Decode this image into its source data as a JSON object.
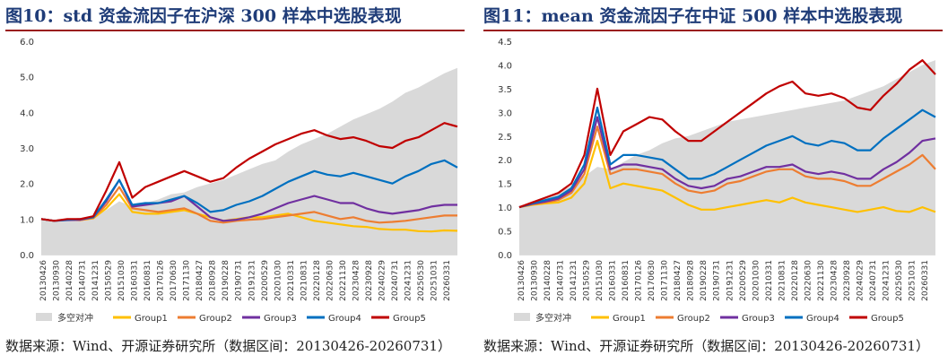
{
  "charts": [
    {
      "title": "图10：std 资金流因子在沪深 300 样本中选股表现",
      "source": "数据来源：Wind、开源证券研究所（数据区间：20130426-20260731）"
    },
    {
      "title": "图11：mean 资金流因子在中证 500 样本中选股表现",
      "source": "数据来源：Wind、开源证券研究所（数据区间：20130426-20260731）"
    }
  ],
  "chart_data": [
    {
      "type": "line",
      "title": "图10：std 资金流因子在沪深 300 样本中选股表现",
      "ylim": [
        0,
        6
      ],
      "y_ticks": [
        "0.0",
        "1.0",
        "2.0",
        "3.0",
        "4.0",
        "5.0",
        "6.0"
      ],
      "x_ticks": [
        "20130426",
        "20130930",
        "20140228",
        "20140731",
        "20141231",
        "20150529",
        "20151030",
        "20160331",
        "20160831",
        "20170126",
        "20170630",
        "20171130",
        "20180427",
        "20180928",
        "20190228",
        "20190731",
        "20191231",
        "20200529",
        "20201030",
        "20210331",
        "20210831",
        "20220128",
        "20220630",
        "20221130",
        "20230428",
        "20230928",
        "20240229",
        "20240731",
        "20241231",
        "20250530",
        "20251031",
        "20260331"
      ],
      "legend_position": "bottom",
      "series": [
        {
          "name": "多空对冲",
          "kind": "area",
          "color": "#d9d9d9",
          "values": [
            1.0,
            0.95,
            0.97,
            1.0,
            1.05,
            1.25,
            1.5,
            1.35,
            1.45,
            1.55,
            1.7,
            1.75,
            1.9,
            2.0,
            2.1,
            2.25,
            2.4,
            2.55,
            2.65,
            2.9,
            3.1,
            3.25,
            3.4,
            3.6,
            3.8,
            3.95,
            4.1,
            4.3,
            4.55,
            4.7,
            4.9,
            5.1,
            5.25
          ]
        },
        {
          "name": "Group1",
          "kind": "line",
          "color": "#ffc000",
          "values": [
            1.0,
            0.95,
            0.98,
            0.97,
            1.02,
            1.3,
            1.7,
            1.2,
            1.15,
            1.15,
            1.2,
            1.25,
            1.15,
            1.05,
            0.95,
            1.0,
            1.05,
            1.05,
            1.1,
            1.15,
            1.05,
            0.95,
            0.9,
            0.85,
            0.8,
            0.78,
            0.72,
            0.7,
            0.7,
            0.66,
            0.65,
            0.68,
            0.67
          ]
        },
        {
          "name": "Group2",
          "kind": "line",
          "color": "#ed7d31",
          "values": [
            1.0,
            0.95,
            0.98,
            0.97,
            1.03,
            1.4,
            1.9,
            1.3,
            1.25,
            1.2,
            1.25,
            1.3,
            1.15,
            0.95,
            0.9,
            0.95,
            0.98,
            1.0,
            1.05,
            1.1,
            1.15,
            1.2,
            1.1,
            1.0,
            1.05,
            0.95,
            0.9,
            0.92,
            0.95,
            1.0,
            1.05,
            1.1,
            1.1
          ]
        },
        {
          "name": "Group3",
          "kind": "line",
          "color": "#7030a0",
          "values": [
            1.0,
            0.95,
            0.97,
            0.98,
            1.05,
            1.5,
            2.1,
            1.35,
            1.4,
            1.45,
            1.5,
            1.65,
            1.35,
            1.05,
            0.95,
            0.98,
            1.05,
            1.15,
            1.3,
            1.45,
            1.55,
            1.65,
            1.55,
            1.45,
            1.45,
            1.3,
            1.2,
            1.15,
            1.2,
            1.25,
            1.35,
            1.4,
            1.4
          ]
        },
        {
          "name": "Group4",
          "kind": "line",
          "color": "#0070c0",
          "values": [
            1.0,
            0.95,
            0.98,
            1.0,
            1.05,
            1.55,
            2.1,
            1.4,
            1.45,
            1.45,
            1.55,
            1.65,
            1.45,
            1.2,
            1.25,
            1.4,
            1.5,
            1.65,
            1.85,
            2.05,
            2.2,
            2.35,
            2.25,
            2.2,
            2.3,
            2.2,
            2.1,
            2.0,
            2.2,
            2.35,
            2.55,
            2.65,
            2.45
          ]
        },
        {
          "name": "Group5",
          "kind": "line",
          "color": "#c00000",
          "values": [
            1.0,
            0.95,
            1.0,
            1.0,
            1.08,
            1.8,
            2.6,
            1.6,
            1.9,
            2.05,
            2.2,
            2.35,
            2.2,
            2.05,
            2.15,
            2.45,
            2.7,
            2.9,
            3.1,
            3.25,
            3.4,
            3.5,
            3.35,
            3.25,
            3.3,
            3.2,
            3.05,
            3.0,
            3.2,
            3.3,
            3.5,
            3.7,
            3.6
          ]
        }
      ]
    },
    {
      "type": "line",
      "title": "图11：mean 资金流因子在中证 500 样本中选股表现",
      "ylim": [
        0,
        4.5
      ],
      "y_ticks": [
        "0.0",
        "0.5",
        "1.0",
        "1.5",
        "2.0",
        "2.5",
        "3.0",
        "3.5",
        "4.0",
        "4.5"
      ],
      "x_ticks": [
        "20130426",
        "20130930",
        "20140228",
        "20140731",
        "20141231",
        "20150529",
        "20151030",
        "20160331",
        "20160831",
        "20170126",
        "20170630",
        "20171130",
        "20180427",
        "20180928",
        "20190228",
        "20190731",
        "20191231",
        "20200529",
        "20201030",
        "20210331",
        "20210831",
        "20220128",
        "20220630",
        "20221130",
        "20230428",
        "20230928",
        "20240229",
        "20240731",
        "20241231",
        "20250530",
        "20251031",
        "20260331"
      ],
      "legend_position": "bottom",
      "series": [
        {
          "name": "多空对冲",
          "kind": "area",
          "color": "#d9d9d9",
          "values": [
            1.0,
            1.1,
            1.2,
            1.3,
            1.45,
            1.65,
            1.85,
            1.8,
            1.95,
            2.1,
            2.2,
            2.35,
            2.45,
            2.5,
            2.6,
            2.7,
            2.8,
            2.85,
            2.9,
            2.95,
            3.0,
            3.05,
            3.1,
            3.15,
            3.2,
            3.25,
            3.35,
            3.45,
            3.55,
            3.7,
            3.85,
            4.0,
            4.1
          ]
        },
        {
          "name": "Group1",
          "kind": "line",
          "color": "#ffc000",
          "values": [
            1.0,
            1.05,
            1.08,
            1.1,
            1.2,
            1.5,
            2.4,
            1.4,
            1.5,
            1.45,
            1.4,
            1.35,
            1.2,
            1.05,
            0.95,
            0.95,
            1.0,
            1.05,
            1.1,
            1.15,
            1.1,
            1.2,
            1.1,
            1.05,
            1.0,
            0.95,
            0.9,
            0.95,
            1.0,
            0.92,
            0.9,
            1.0,
            0.9
          ]
        },
        {
          "name": "Group2",
          "kind": "line",
          "color": "#ed7d31",
          "values": [
            1.0,
            1.06,
            1.1,
            1.15,
            1.3,
            1.7,
            2.7,
            1.7,
            1.8,
            1.8,
            1.75,
            1.7,
            1.5,
            1.35,
            1.3,
            1.35,
            1.5,
            1.55,
            1.65,
            1.75,
            1.8,
            1.8,
            1.65,
            1.6,
            1.6,
            1.55,
            1.45,
            1.45,
            1.6,
            1.75,
            1.9,
            2.1,
            1.8
          ]
        },
        {
          "name": "Group3",
          "kind": "line",
          "color": "#7030a0",
          "values": [
            1.0,
            1.07,
            1.12,
            1.18,
            1.35,
            1.8,
            2.9,
            1.8,
            1.9,
            1.9,
            1.85,
            1.8,
            1.6,
            1.45,
            1.4,
            1.45,
            1.6,
            1.65,
            1.75,
            1.85,
            1.85,
            1.9,
            1.75,
            1.7,
            1.75,
            1.7,
            1.6,
            1.6,
            1.8,
            1.95,
            2.15,
            2.4,
            2.45
          ]
        },
        {
          "name": "Group4",
          "kind": "line",
          "color": "#0070c0",
          "values": [
            1.0,
            1.08,
            1.15,
            1.22,
            1.4,
            1.9,
            3.1,
            1.9,
            2.1,
            2.1,
            2.05,
            2.0,
            1.8,
            1.6,
            1.6,
            1.7,
            1.85,
            2.0,
            2.15,
            2.3,
            2.4,
            2.5,
            2.35,
            2.3,
            2.4,
            2.35,
            2.2,
            2.2,
            2.45,
            2.65,
            2.85,
            3.05,
            2.9
          ]
        },
        {
          "name": "Group5",
          "kind": "line",
          "color": "#c00000",
          "values": [
            1.0,
            1.1,
            1.2,
            1.3,
            1.5,
            2.1,
            3.5,
            2.1,
            2.6,
            2.75,
            2.9,
            2.85,
            2.6,
            2.4,
            2.4,
            2.6,
            2.8,
            3.0,
            3.2,
            3.4,
            3.55,
            3.65,
            3.4,
            3.35,
            3.4,
            3.3,
            3.1,
            3.05,
            3.35,
            3.6,
            3.9,
            4.1,
            3.8
          ]
        }
      ]
    }
  ]
}
